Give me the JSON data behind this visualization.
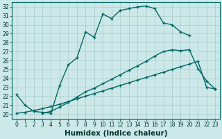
{
  "xlabel": "Humidex (Indice chaleur)",
  "bg_color": "#cce8e8",
  "line_color": "#006666",
  "grid_color": "#aacccc",
  "xlim": [
    -0.5,
    23.5
  ],
  "ylim": [
    19.5,
    32.5
  ],
  "xticks": [
    0,
    1,
    2,
    3,
    4,
    5,
    6,
    7,
    8,
    9,
    10,
    11,
    12,
    13,
    14,
    15,
    16,
    17,
    18,
    19,
    20,
    21,
    22,
    23
  ],
  "yticks": [
    20,
    21,
    22,
    23,
    24,
    25,
    26,
    27,
    28,
    29,
    30,
    31,
    32
  ],
  "line1_x": [
    0,
    1,
    2,
    3,
    4,
    5,
    6,
    7,
    8,
    9,
    10,
    11,
    12,
    13,
    14,
    15,
    16,
    17,
    18,
    19,
    20
  ],
  "line1_y": [
    22.2,
    21.0,
    20.3,
    20.2,
    20.1,
    23.2,
    25.5,
    26.3,
    29.2,
    28.6,
    31.2,
    30.7,
    31.6,
    31.8,
    32.0,
    32.1,
    31.8,
    30.2,
    30.0,
    29.2,
    28.8
  ],
  "line2_x": [
    3,
    4,
    5,
    6,
    7,
    8,
    9,
    10,
    11,
    12,
    13,
    14,
    15,
    16,
    17,
    18,
    19,
    20,
    21,
    22,
    23
  ],
  "line2_y": [
    20.1,
    20.3,
    20.8,
    21.3,
    21.9,
    22.5,
    22.9,
    23.4,
    23.9,
    24.4,
    24.9,
    25.4,
    25.9,
    26.5,
    27.0,
    27.2,
    27.1,
    27.2,
    25.1,
    23.7,
    22.8
  ],
  "line3_x": [
    0,
    1,
    2,
    3,
    4,
    5,
    6,
    7,
    8,
    9,
    10,
    11,
    12,
    13,
    14,
    15,
    16,
    17,
    18,
    19,
    20,
    21,
    22,
    23
  ],
  "line3_y": [
    20.1,
    20.2,
    20.4,
    20.6,
    20.85,
    21.1,
    21.4,
    21.7,
    22.0,
    22.3,
    22.6,
    22.9,
    23.2,
    23.5,
    23.8,
    24.1,
    24.4,
    24.7,
    25.0,
    25.3,
    25.6,
    25.9,
    23.0,
    22.8
  ]
}
